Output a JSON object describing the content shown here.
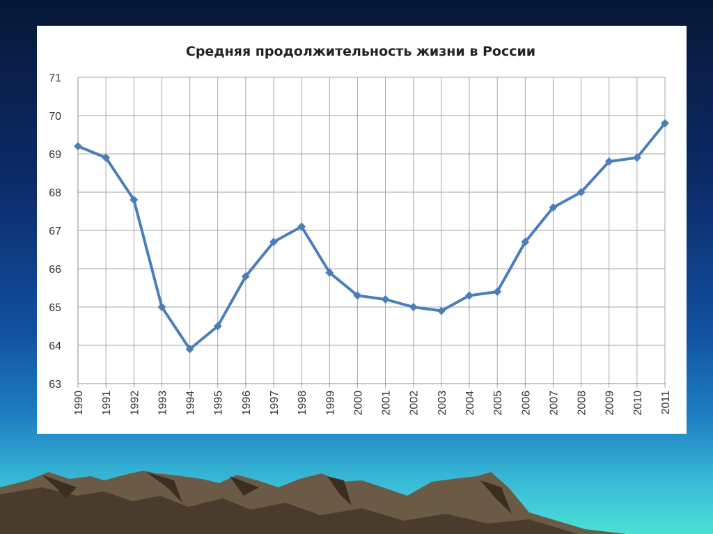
{
  "chart_data": {
    "type": "line",
    "title": "Средняя продолжительность жизни в России",
    "xlabel": "",
    "ylabel": "",
    "categories": [
      "1990",
      "1991",
      "1992",
      "1993",
      "1994",
      "1995",
      "1996",
      "1997",
      "1998",
      "1999",
      "2000",
      "2001",
      "2002",
      "2003",
      "2004",
      "2005",
      "2006",
      "2007",
      "2008",
      "2009",
      "2010",
      "2011"
    ],
    "series": [
      {
        "values": [
          69.2,
          68.9,
          67.8,
          65.0,
          63.9,
          64.5,
          65.8,
          66.7,
          67.1,
          65.9,
          65.3,
          65.2,
          65.0,
          64.9,
          65.3,
          65.4,
          66.7,
          67.6,
          68.0,
          68.8,
          68.9,
          69.8
        ],
        "color": "#4a7ebb"
      }
    ],
    "ylim": [
      63,
      71
    ],
    "yticks": [
      "63",
      "64",
      "65",
      "66",
      "67",
      "68",
      "69",
      "70",
      "71"
    ],
    "grid": true,
    "marker": "diamond",
    "legend": "none"
  },
  "colors": {
    "line": "#4a7ebb",
    "grid": "#a6a6a6",
    "panel": "#ffffff"
  }
}
